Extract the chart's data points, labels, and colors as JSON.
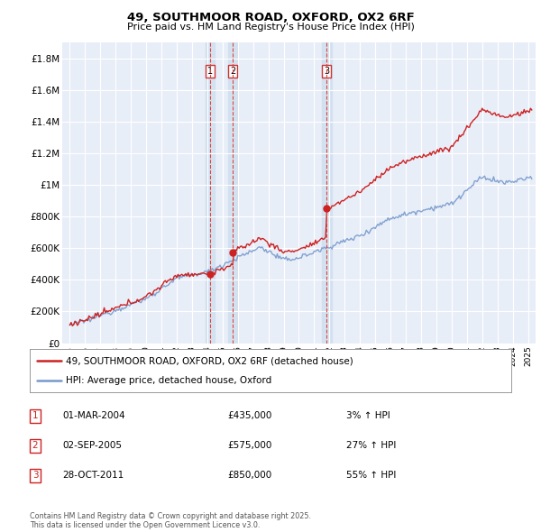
{
  "title_line1": "49, SOUTHMOOR ROAD, OXFORD, OX2 6RF",
  "title_line2": "Price paid vs. HM Land Registry's House Price Index (HPI)",
  "background_color": "#ffffff",
  "plot_bg_color": "#e8eef8",
  "grid_color": "#ffffff",
  "house_color": "#cc2222",
  "hpi_color": "#7799cc",
  "vline_color": "#dd4444",
  "vband_color": "#ccddee",
  "legend_house": "49, SOUTHMOOR ROAD, OXFORD, OX2 6RF (detached house)",
  "legend_hpi": "HPI: Average price, detached house, Oxford",
  "transactions": [
    {
      "num": 1,
      "date": "01-MAR-2004",
      "price": 435000,
      "pct": "3%",
      "dir": "↑",
      "x_year": 2004.17
    },
    {
      "num": 2,
      "date": "02-SEP-2005",
      "price": 575000,
      "pct": "27%",
      "dir": "↑",
      "x_year": 2005.67
    },
    {
      "num": 3,
      "date": "28-OCT-2011",
      "price": 850000,
      "pct": "55%",
      "dir": "↑",
      "x_year": 2011.83
    }
  ],
  "footnote": "Contains HM Land Registry data © Crown copyright and database right 2025.\nThis data is licensed under the Open Government Licence v3.0.",
  "yticks": [
    0,
    200000,
    400000,
    600000,
    800000,
    1000000,
    1200000,
    1400000,
    1600000,
    1800000
  ],
  "ytick_labels": [
    "£0",
    "£200K",
    "£400K",
    "£600K",
    "£800K",
    "£1M",
    "£1.2M",
    "£1.4M",
    "£1.6M",
    "£1.8M"
  ],
  "xlim_start": 1994.5,
  "xlim_end": 2025.5,
  "ylim_top": 1900000,
  "ylim_bottom": 0
}
